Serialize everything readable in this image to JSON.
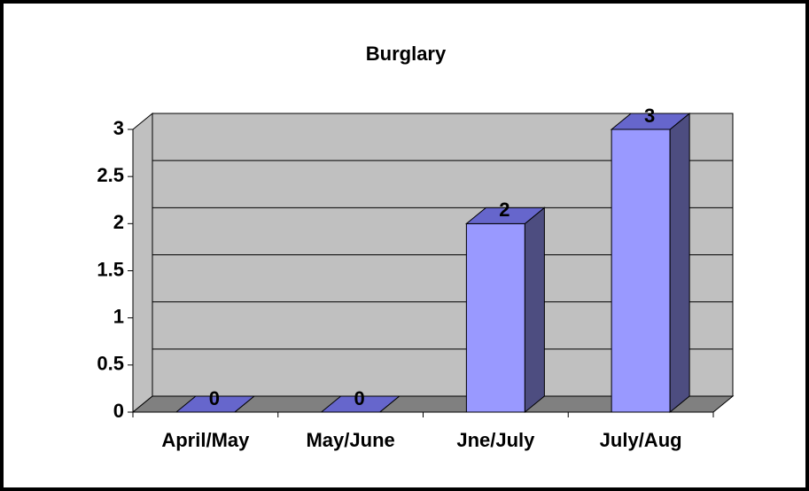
{
  "chart_data": {
    "type": "bar",
    "title": "Burglary",
    "categories": [
      "April/May",
      "May/June",
      "Jne/July",
      "July/Aug"
    ],
    "values": [
      0,
      0,
      2,
      3
    ],
    "color": "#9999ff",
    "ylim": [
      0,
      3
    ],
    "yticks": [
      0,
      0.5,
      1,
      1.5,
      2,
      2.5,
      3
    ],
    "grid": true
  }
}
